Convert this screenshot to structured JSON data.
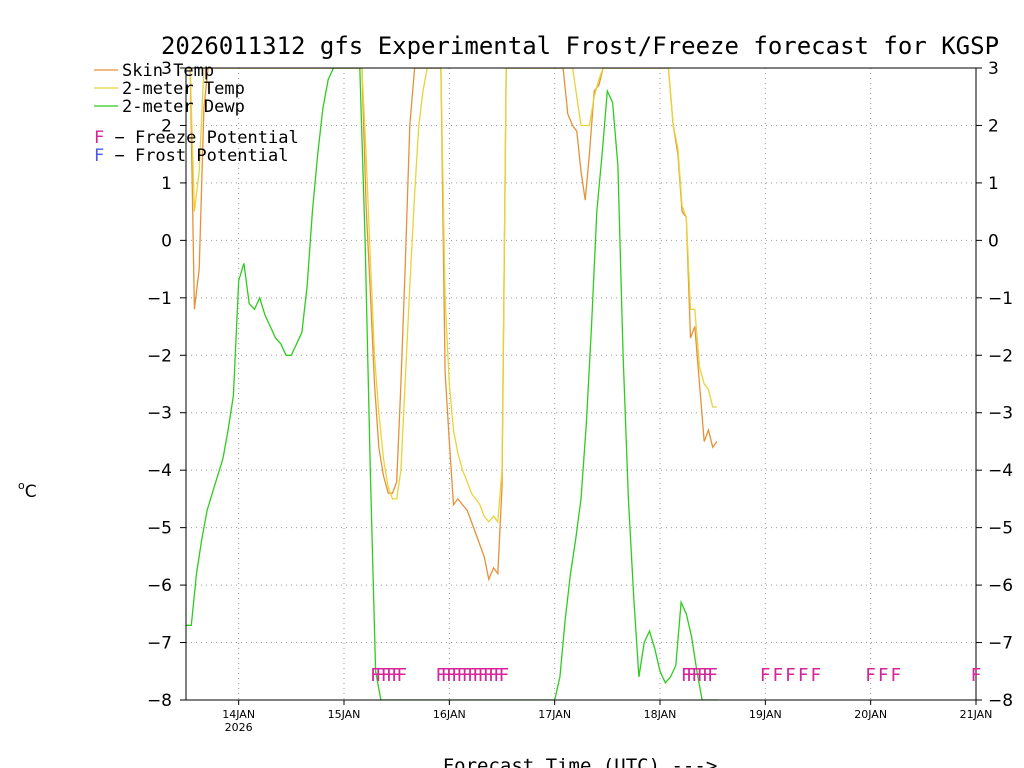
{
  "chart_data": {
    "type": "line",
    "title": "2026011312 gfs Experimental Frost/Freeze forecast for KGSP",
    "xlabel": "Forecast Time (UTC) --->",
    "ylabel_deg": "o",
    "ylabel_unit": "C",
    "ylim": [
      -8,
      3
    ],
    "yticks": [
      3,
      2,
      1,
      0,
      -1,
      -2,
      -3,
      -4,
      -5,
      -6,
      -7,
      -8
    ],
    "ytick_labels": [
      "3",
      "2",
      "1",
      "0",
      "−1",
      "−2",
      "−3",
      "−4",
      "−5",
      "−6",
      "−7",
      "−8"
    ],
    "xlim": [
      13.5,
      21.0
    ],
    "xticks": [
      {
        "x": 14,
        "label": "14JAN",
        "sub": "2026"
      },
      {
        "x": 15,
        "label": "15JAN",
        "sub": ""
      },
      {
        "x": 16,
        "label": "16JAN",
        "sub": ""
      },
      {
        "x": 17,
        "label": "17JAN",
        "sub": ""
      },
      {
        "x": 18,
        "label": "18JAN",
        "sub": ""
      },
      {
        "x": 19,
        "label": "19JAN",
        "sub": ""
      },
      {
        "x": 20,
        "label": "20JAN",
        "sub": ""
      },
      {
        "x": 21,
        "label": "21JAN",
        "sub": ""
      }
    ],
    "grid": true,
    "legend": [
      {
        "label": "Skin Temp",
        "color": "#e69138"
      },
      {
        "label": "2-meter Temp",
        "color": "#e8d438"
      },
      {
        "label": "2-meter Dewp",
        "color": "#2ecc1f"
      }
    ],
    "potential_legend": [
      {
        "mark": "F",
        "label": " − Freeze Potential",
        "color": "#d6249a"
      },
      {
        "mark": "F",
        "label": " − Frost Potential",
        "color": "#4a5ae8"
      }
    ],
    "series": [
      {
        "name": "Skin Temp",
        "color": "#e69138",
        "x": [
          13.5,
          13.54,
          13.58,
          13.625,
          13.67,
          13.71,
          14.0,
          15.1,
          15.125,
          15.17,
          15.21,
          15.25,
          15.29,
          15.33,
          15.375,
          15.42,
          15.46,
          15.5,
          15.54,
          15.58,
          15.625,
          15.67,
          15.71,
          15.75,
          15.79,
          15.83,
          15.875,
          15.9,
          15.92,
          15.96,
          16.0,
          16.04,
          16.08,
          16.125,
          16.17,
          16.21,
          16.25,
          16.29,
          16.33,
          16.375,
          16.42,
          16.46,
          16.5,
          16.54,
          16.58,
          16.625,
          17.0,
          17.04,
          17.08,
          17.125,
          17.17,
          17.21,
          17.25,
          17.29,
          17.33,
          17.375,
          17.42,
          17.46,
          17.5,
          18.0,
          18.04,
          18.08,
          18.125,
          18.17,
          18.21,
          18.25,
          18.29,
          18.33,
          18.375,
          18.42,
          18.46,
          18.5,
          18.54
        ],
        "values": [
          3,
          3,
          -1.2,
          -0.5,
          2.3,
          3,
          3,
          3,
          3,
          3,
          0.6,
          -0.9,
          -2.5,
          -3.6,
          -4.1,
          -4.4,
          -4.4,
          -4.2,
          -2.5,
          -0.5,
          2.0,
          3,
          3,
          3,
          3,
          3,
          3,
          3,
          3,
          -2.3,
          -3.5,
          -4.6,
          -4.5,
          -4.6,
          -4.7,
          -4.9,
          -5.1,
          -5.3,
          -5.5,
          -5.9,
          -5.7,
          -5.8,
          -4.3,
          3,
          3,
          3,
          3,
          3,
          3,
          2.2,
          2.0,
          1.9,
          1.2,
          0.7,
          1.5,
          2.6,
          2.7,
          3,
          3,
          3,
          3,
          3,
          2.0,
          1.5,
          0.5,
          0.4,
          -1.7,
          -1.5,
          -2.5,
          -3.5,
          -3.3,
          -3.6,
          -3.5
        ]
      },
      {
        "name": "2-meter Temp",
        "color": "#e8d438",
        "x": [
          13.5,
          13.54,
          13.58,
          13.625,
          13.67,
          13.71,
          14.0,
          15.1,
          15.125,
          15.17,
          15.21,
          15.25,
          15.29,
          15.33,
          15.375,
          15.42,
          15.46,
          15.5,
          15.54,
          15.58,
          15.625,
          15.67,
          15.71,
          15.75,
          15.79,
          15.83,
          15.875,
          15.9,
          15.92,
          15.96,
          16.0,
          16.04,
          16.08,
          16.125,
          16.17,
          16.21,
          16.25,
          16.29,
          16.33,
          16.375,
          16.42,
          16.46,
          16.5,
          16.54,
          16.58,
          16.625,
          17.0,
          17.04,
          17.08,
          17.125,
          17.17,
          17.21,
          17.25,
          17.29,
          17.33,
          17.375,
          17.42,
          17.46,
          17.5,
          18.0,
          18.04,
          18.08,
          18.125,
          18.17,
          18.21,
          18.25,
          18.29,
          18.33,
          18.375,
          18.42,
          18.46,
          18.5,
          18.54
        ],
        "values": [
          3,
          3,
          0.5,
          1.2,
          3,
          3,
          3,
          3,
          3,
          3,
          1.5,
          -0.3,
          -2.0,
          -3.0,
          -3.8,
          -4.3,
          -4.5,
          -4.5,
          -4.0,
          -2.5,
          -0.8,
          0.8,
          2.0,
          2.6,
          3,
          3,
          3,
          3,
          3,
          -1.0,
          -2.5,
          -3.3,
          -3.7,
          -4.0,
          -4.2,
          -4.4,
          -4.5,
          -4.6,
          -4.8,
          -4.9,
          -4.8,
          -4.9,
          -4.0,
          3,
          3,
          3,
          3,
          3,
          3,
          3,
          3,
          2.5,
          2.0,
          2.0,
          2.0,
          2.5,
          2.8,
          3,
          3,
          3,
          3,
          3,
          2.0,
          1.6,
          0.6,
          0.4,
          -1.2,
          -1.2,
          -2.2,
          -2.5,
          -2.6,
          -2.9,
          -2.9
        ]
      },
      {
        "name": "2-meter Dewp",
        "color": "#2ecc1f",
        "x": [
          13.5,
          13.55,
          13.6,
          13.65,
          13.7,
          13.75,
          13.8,
          13.85,
          13.9,
          13.95,
          14.0,
          14.05,
          14.1,
          14.15,
          14.2,
          14.25,
          14.3,
          14.35,
          14.4,
          14.45,
          14.5,
          14.55,
          14.6,
          14.65,
          14.7,
          14.75,
          14.8,
          14.85,
          14.9,
          14.95,
          15.0,
          15.05,
          15.1,
          15.125,
          15.15,
          15.2,
          15.25,
          15.3,
          15.35,
          16.9,
          17.0,
          17.05,
          17.1,
          17.15,
          17.2,
          17.25,
          17.3,
          17.35,
          17.4,
          17.45,
          17.5,
          17.55,
          17.6,
          17.65,
          17.7,
          17.75,
          17.8,
          17.85,
          17.9,
          17.95,
          18.0,
          18.05,
          18.1,
          18.15,
          18.2,
          18.25,
          18.3,
          18.35,
          18.4,
          18.45,
          18.5,
          18.55
        ],
        "values": [
          -6.7,
          -6.7,
          -5.8,
          -5.2,
          -4.7,
          -4.4,
          -4.1,
          -3.8,
          -3.3,
          -2.7,
          -0.7,
          -0.4,
          -1.1,
          -1.2,
          -1.0,
          -1.3,
          -1.5,
          -1.7,
          -1.8,
          -2.0,
          -2.0,
          -1.8,
          -1.6,
          -0.8,
          0.5,
          1.5,
          2.3,
          2.8,
          3,
          3,
          3,
          3,
          3,
          3,
          3,
          0,
          -4.0,
          -7.5,
          -8,
          -8,
          -8,
          -7.6,
          -6.6,
          -5.8,
          -5.2,
          -4.5,
          -3.2,
          -1.5,
          0.5,
          1.5,
          2.6,
          2.4,
          1.3,
          -2.0,
          -4.5,
          -6.2,
          -7.6,
          -7.0,
          -6.8,
          -7.1,
          -7.5,
          -7.7,
          -7.6,
          -7.4,
          -6.3,
          -6.5,
          -6.9,
          -7.5,
          -8,
          -8,
          -8,
          -8
        ]
      }
    ],
    "freeze_potential": [
      {
        "x": 15.3,
        "mark": "F"
      },
      {
        "x": 15.35,
        "mark": "F"
      },
      {
        "x": 15.4,
        "mark": "F"
      },
      {
        "x": 15.45,
        "mark": "F"
      },
      {
        "x": 15.5,
        "mark": "F"
      },
      {
        "x": 15.55,
        "mark": "F"
      },
      {
        "x": 15.92,
        "mark": "F"
      },
      {
        "x": 15.97,
        "mark": "F"
      },
      {
        "x": 16.02,
        "mark": "F"
      },
      {
        "x": 16.07,
        "mark": "F"
      },
      {
        "x": 16.12,
        "mark": "F"
      },
      {
        "x": 16.17,
        "mark": "F"
      },
      {
        "x": 16.22,
        "mark": "F"
      },
      {
        "x": 16.27,
        "mark": "F"
      },
      {
        "x": 16.32,
        "mark": "F"
      },
      {
        "x": 16.37,
        "mark": "F"
      },
      {
        "x": 16.42,
        "mark": "F"
      },
      {
        "x": 16.47,
        "mark": "F"
      },
      {
        "x": 16.52,
        "mark": "F"
      },
      {
        "x": 18.25,
        "mark": "F"
      },
      {
        "x": 18.3,
        "mark": "F"
      },
      {
        "x": 18.35,
        "mark": "F"
      },
      {
        "x": 18.4,
        "mark": "F"
      },
      {
        "x": 18.45,
        "mark": "F"
      },
      {
        "x": 18.5,
        "mark": "F"
      },
      {
        "x": 19.0,
        "mark": "F"
      },
      {
        "x": 19.12,
        "mark": "F"
      },
      {
        "x": 19.24,
        "mark": "F"
      },
      {
        "x": 19.36,
        "mark": "F"
      },
      {
        "x": 19.48,
        "mark": "F"
      },
      {
        "x": 20.0,
        "mark": "F"
      },
      {
        "x": 20.12,
        "mark": "F"
      },
      {
        "x": 20.24,
        "mark": "F"
      },
      {
        "x": 21.0,
        "mark": "F"
      }
    ],
    "freeze_value": -7.55
  }
}
